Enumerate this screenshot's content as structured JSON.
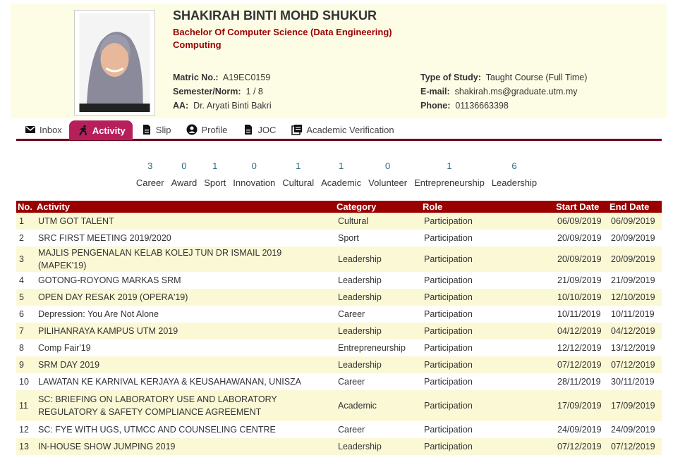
{
  "student": {
    "name": "SHAKIRAH BINTI MOHD SHUKUR",
    "programme": "Bachelor Of Computer Science (Data Engineering)",
    "faculty": "Computing",
    "matric_label": "Matric No.:",
    "matric": "A19EC0159",
    "semester_label": "Semester/Norm:",
    "semester": "1 / 8",
    "aa_label": "AA:",
    "aa": "Dr. Aryati Binti Bakri",
    "study_label": "Type of Study:",
    "study": "Taught Course (Full Time)",
    "email_label": "E-mail:",
    "email": "shakirah.ms@graduate.utm.my",
    "phone_label": "Phone:",
    "phone": "01136663398"
  },
  "tabs": [
    {
      "label": "Inbox",
      "icon": "envelope-icon"
    },
    {
      "label": "Activity",
      "icon": "running-icon",
      "active": true
    },
    {
      "label": "Slip",
      "icon": "document-icon"
    },
    {
      "label": "Profile",
      "icon": "user-circle-icon"
    },
    {
      "label": "JOC",
      "icon": "document-icon"
    },
    {
      "label": "Academic Verification",
      "icon": "documents-icon"
    }
  ],
  "counts": [
    {
      "n": "3",
      "label": "Career"
    },
    {
      "n": "0",
      "label": "Award"
    },
    {
      "n": "1",
      "label": "Sport"
    },
    {
      "n": "0",
      "label": "Innovation"
    },
    {
      "n": "1",
      "label": "Cultural"
    },
    {
      "n": "1",
      "label": "Academic"
    },
    {
      "n": "0",
      "label": "Volunteer"
    },
    {
      "n": "1",
      "label": "Entrepreneurship"
    },
    {
      "n": "6",
      "label": "Leadership"
    }
  ],
  "table": {
    "headers": [
      "No.",
      "Activity",
      "Category",
      "Role",
      "Start Date",
      "End Date"
    ],
    "rows": [
      [
        "1",
        "UTM GOT TALENT",
        "Cultural",
        "Participation",
        "06/09/2019",
        "06/09/2019"
      ],
      [
        "2",
        "SRC FIRST MEETING 2019/2020",
        "Sport",
        "Participation",
        "20/09/2019",
        "20/09/2019"
      ],
      [
        "3",
        "MAJLIS PENGENALAN KELAB KOLEJ TUN DR ISMAIL 2019 (MAPEK'19)",
        "Leadership",
        "Participation",
        "20/09/2019",
        "20/09/2019"
      ],
      [
        "4",
        "GOTONG-ROYONG MARKAS SRM",
        "Leadership",
        "Participation",
        "21/09/2019",
        "21/09/2019"
      ],
      [
        "5",
        "OPEN DAY RESAK 2019 (OPERA'19)",
        "Leadership",
        "Participation",
        "10/10/2019",
        "12/10/2019"
      ],
      [
        "6",
        "Depression: You Are Not Alone",
        "Career",
        "Participation",
        "10/11/2019",
        "10/11/2019"
      ],
      [
        "7",
        "PILIHANRAYA KAMPUS UTM 2019",
        "Leadership",
        "Participation",
        "04/12/2019",
        "04/12/2019"
      ],
      [
        "8",
        "Comp Fair'19",
        "Entrepreneurship",
        "Participation",
        "12/12/2019",
        "13/12/2019"
      ],
      [
        "9",
        "SRM DAY 2019",
        "Leadership",
        "Participation",
        "07/12/2019",
        "07/12/2019"
      ],
      [
        "10",
        "LAWATAN KE KARNIVAL KERJAYA & KEUSAHAWANAN, UNISZA",
        "Career",
        "Participation",
        "28/11/2019",
        "30/11/2019"
      ],
      [
        "11",
        "SC: BRIEFING ON LABORATORY USE AND LABORATORY REGULATORY & SAFETY COMPLIANCE AGREEMENT",
        "Academic",
        "Participation",
        "17/09/2019",
        "17/09/2019"
      ],
      [
        "12",
        "SC: FYE WITH UGS, UTMCC AND COUNSELING CENTRE",
        "Career",
        "Participation",
        "24/09/2019",
        "24/09/2019"
      ],
      [
        "13",
        "IN-HOUSE SHOW JUMPING 2019",
        "Leadership",
        "Participation",
        "07/12/2019",
        "07/12/2019"
      ]
    ]
  }
}
